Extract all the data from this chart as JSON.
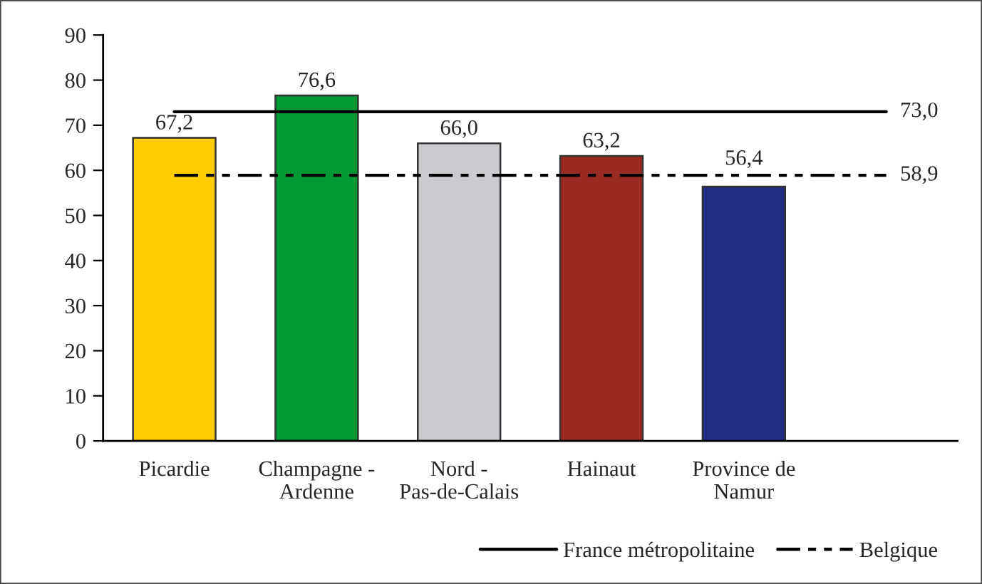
{
  "chart_data": {
    "type": "bar",
    "categories": [
      "Picardie",
      "Champagne -\nArdenne",
      "Nord -\nPas-de-Calais",
      "Hainaut",
      "Province de\nNamur",
      null
    ],
    "series": [
      {
        "colors": [
          "#ffcc00",
          "#009933",
          "#cbccd0",
          "#992b22",
          "#222d85",
          "#222d85"
        ],
        "values": [
          67.2,
          76.6,
          66.0,
          63.2,
          56.4,
          null
        ],
        "value_labels": [
          "67,2",
          "76,6",
          "66,0",
          "63,2",
          "56,4",
          null
        ]
      },
      {
        "type": "line",
        "name": "France métropolitaine",
        "color": "#000000",
        "line_style": "solid",
        "values": [
          73.0,
          73.0,
          73.0,
          73.0,
          73.0,
          73.0
        ],
        "value_labels": [
          null,
          null,
          null,
          null,
          null,
          "73,0"
        ]
      },
      {
        "type": "line",
        "name": "Belgique",
        "color": "#000000",
        "line_style": "dashed",
        "values": [
          58.9,
          58.9,
          58.9,
          58.9,
          58.9,
          58.9
        ],
        "value_labels": [
          null,
          null,
          null,
          null,
          null,
          "58,9"
        ]
      }
    ],
    "ylim": [
      0,
      90
    ],
    "yticks": [
      0,
      10,
      20,
      30,
      40,
      50,
      60,
      70,
      80,
      90
    ],
    "grid": false,
    "legend": "bottom right"
  }
}
